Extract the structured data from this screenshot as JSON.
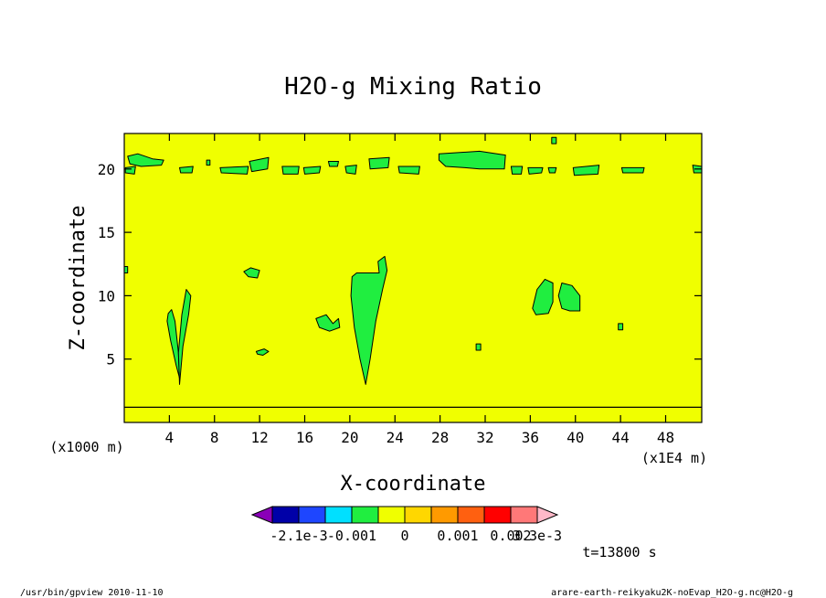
{
  "chart_data": {
    "type": "heatmap",
    "title": "H2O-g Mixing Ratio",
    "xlabel": "X-coordinate",
    "ylabel": "Z-coordinate",
    "x_unit_left": "(x1000 m)",
    "x_unit_right": "(x1E4 m)",
    "xlim": [
      0,
      51.2
    ],
    "ylim": [
      0,
      22.8
    ],
    "xticks": [
      4,
      8,
      12,
      16,
      20,
      24,
      28,
      32,
      36,
      40,
      44,
      48
    ],
    "xtick_labels": [
      "4",
      "8",
      "12",
      "16",
      "20",
      "24",
      "28",
      "32",
      "36",
      "40",
      "44",
      "48"
    ],
    "yticks": [
      5,
      10,
      15,
      20
    ],
    "ytick_labels": [
      "5",
      "10",
      "15",
      "20"
    ],
    "background_level_color": "#f0ff00",
    "anomaly_color": "#20ee40",
    "contour_line_color": "#000000",
    "horizontal_line_z": 1.2,
    "features": [
      {
        "name": "plume-a-left",
        "points": [
          [
            3.9,
            8.6
          ],
          [
            4.2,
            8.9
          ],
          [
            4.5,
            8.0
          ],
          [
            4.8,
            5.5
          ],
          [
            4.9,
            3.5
          ],
          [
            4.6,
            4.5
          ],
          [
            4.1,
            6.5
          ],
          [
            3.8,
            8.0
          ]
        ]
      },
      {
        "name": "plume-a-right",
        "points": [
          [
            5.5,
            10.5
          ],
          [
            5.9,
            10.0
          ],
          [
            5.7,
            8.5
          ],
          [
            5.2,
            6.0
          ],
          [
            4.9,
            3.0
          ],
          [
            4.8,
            5.5
          ],
          [
            5.1,
            8.5
          ]
        ]
      },
      {
        "name": "plume-b",
        "points": [
          [
            20.6,
            11.8
          ],
          [
            22.6,
            11.8
          ],
          [
            22.5,
            12.7
          ],
          [
            23.1,
            13.1
          ],
          [
            23.3,
            12.0
          ],
          [
            22.9,
            10.5
          ],
          [
            22.3,
            8.0
          ],
          [
            21.8,
            5.0
          ],
          [
            21.4,
            3.0
          ],
          [
            20.9,
            5.0
          ],
          [
            20.4,
            7.5
          ],
          [
            20.1,
            10.0
          ],
          [
            20.2,
            11.5
          ]
        ]
      },
      {
        "name": "blob-c",
        "points": [
          [
            36.2,
            9.0
          ],
          [
            36.6,
            10.5
          ],
          [
            37.3,
            11.3
          ],
          [
            38.0,
            11.0
          ],
          [
            38.0,
            9.5
          ],
          [
            37.6,
            8.6
          ],
          [
            36.5,
            8.5
          ]
        ]
      },
      {
        "name": "blob-d",
        "points": [
          [
            38.5,
            10.0
          ],
          [
            38.8,
            11.0
          ],
          [
            39.7,
            10.8
          ],
          [
            40.4,
            10.0
          ],
          [
            40.4,
            8.8
          ],
          [
            39.5,
            8.8
          ],
          [
            38.8,
            9.0
          ]
        ]
      },
      {
        "name": "blob-e",
        "points": [
          [
            17.0,
            8.2
          ],
          [
            17.9,
            8.5
          ],
          [
            18.5,
            7.8
          ],
          [
            19.0,
            8.2
          ],
          [
            19.1,
            7.5
          ],
          [
            18.2,
            7.2
          ],
          [
            17.3,
            7.5
          ]
        ]
      },
      {
        "name": "blob-f",
        "points": [
          [
            10.6,
            11.9
          ],
          [
            11.2,
            12.2
          ],
          [
            12.0,
            12.0
          ],
          [
            11.8,
            11.4
          ],
          [
            11.0,
            11.5
          ]
        ]
      },
      {
        "name": "blob-g",
        "points": [
          [
            11.7,
            5.6
          ],
          [
            12.4,
            5.8
          ],
          [
            12.8,
            5.6
          ],
          [
            12.3,
            5.3
          ],
          [
            11.8,
            5.4
          ]
        ]
      },
      {
        "name": "band-1",
        "points": [
          [
            0.3,
            21.0
          ],
          [
            1.2,
            21.2
          ],
          [
            2.5,
            20.8
          ],
          [
            3.5,
            20.7
          ],
          [
            3.3,
            20.3
          ],
          [
            1.5,
            20.2
          ],
          [
            0.5,
            20.4
          ]
        ]
      },
      {
        "name": "band-2",
        "points": [
          [
            0.1,
            20.1
          ],
          [
            1.0,
            20.2
          ],
          [
            0.9,
            19.6
          ],
          [
            0.1,
            19.7
          ]
        ]
      },
      {
        "name": "band-3",
        "points": [
          [
            4.9,
            20.1
          ],
          [
            6.1,
            20.2
          ],
          [
            6.0,
            19.7
          ],
          [
            5.0,
            19.7
          ]
        ]
      },
      {
        "name": "band-4",
        "points": [
          [
            8.5,
            20.1
          ],
          [
            11.0,
            20.2
          ],
          [
            10.9,
            19.6
          ],
          [
            8.6,
            19.7
          ]
        ]
      },
      {
        "name": "band-5",
        "points": [
          [
            11.1,
            20.6
          ],
          [
            12.8,
            20.9
          ],
          [
            12.7,
            20.0
          ],
          [
            11.3,
            19.8
          ]
        ]
      },
      {
        "name": "band-6",
        "points": [
          [
            14.0,
            20.2
          ],
          [
            15.5,
            20.2
          ],
          [
            15.4,
            19.6
          ],
          [
            14.1,
            19.6
          ]
        ]
      },
      {
        "name": "band-7",
        "points": [
          [
            15.9,
            20.1
          ],
          [
            17.4,
            20.2
          ],
          [
            17.3,
            19.7
          ],
          [
            16.0,
            19.6
          ]
        ]
      },
      {
        "name": "band-8",
        "points": [
          [
            18.1,
            20.6
          ],
          [
            19.0,
            20.6
          ],
          [
            18.9,
            20.2
          ],
          [
            18.2,
            20.2
          ]
        ]
      },
      {
        "name": "band-9",
        "points": [
          [
            19.6,
            20.2
          ],
          [
            20.6,
            20.3
          ],
          [
            20.5,
            19.6
          ],
          [
            19.7,
            19.7
          ]
        ]
      },
      {
        "name": "band-10",
        "points": [
          [
            21.7,
            20.8
          ],
          [
            23.5,
            20.9
          ],
          [
            23.4,
            20.1
          ],
          [
            21.8,
            20.0
          ]
        ]
      },
      {
        "name": "band-11",
        "points": [
          [
            24.3,
            20.2
          ],
          [
            26.2,
            20.2
          ],
          [
            26.1,
            19.6
          ],
          [
            24.4,
            19.7
          ]
        ]
      },
      {
        "name": "band-12",
        "points": [
          [
            27.9,
            21.2
          ],
          [
            31.5,
            21.4
          ],
          [
            33.8,
            21.1
          ],
          [
            33.7,
            20.0
          ],
          [
            31.5,
            20.0
          ],
          [
            30.2,
            20.1
          ],
          [
            28.5,
            20.2
          ],
          [
            27.9,
            20.7
          ]
        ]
      },
      {
        "name": "band-13",
        "points": [
          [
            34.3,
            20.2
          ],
          [
            35.3,
            20.2
          ],
          [
            35.2,
            19.6
          ],
          [
            34.4,
            19.6
          ]
        ]
      },
      {
        "name": "band-14",
        "points": [
          [
            35.8,
            20.1
          ],
          [
            37.1,
            20.1
          ],
          [
            37.0,
            19.7
          ],
          [
            35.9,
            19.6
          ]
        ]
      },
      {
        "name": "band-15",
        "points": [
          [
            37.6,
            20.1
          ],
          [
            38.3,
            20.1
          ],
          [
            38.2,
            19.7
          ],
          [
            37.7,
            19.7
          ]
        ]
      },
      {
        "name": "band-16",
        "points": [
          [
            39.8,
            20.1
          ],
          [
            42.1,
            20.3
          ],
          [
            42.0,
            19.6
          ],
          [
            39.9,
            19.5
          ]
        ]
      },
      {
        "name": "band-17",
        "points": [
          [
            44.1,
            20.1
          ],
          [
            46.1,
            20.1
          ],
          [
            46.0,
            19.7
          ],
          [
            44.2,
            19.7
          ]
        ]
      },
      {
        "name": "band-18",
        "points": [
          [
            50.4,
            20.3
          ],
          [
            51.2,
            20.2
          ],
          [
            51.2,
            19.7
          ],
          [
            50.5,
            19.7
          ]
        ]
      },
      {
        "name": "dot-1",
        "points": [
          [
            37.9,
            22.5
          ],
          [
            38.3,
            22.5
          ],
          [
            38.3,
            22.0
          ],
          [
            37.9,
            22.0
          ]
        ]
      },
      {
        "name": "dot-2",
        "points": [
          [
            31.2,
            6.2
          ],
          [
            31.6,
            6.2
          ],
          [
            31.6,
            5.7
          ],
          [
            31.2,
            5.7
          ]
        ]
      },
      {
        "name": "dot-3",
        "points": [
          [
            43.8,
            7.8
          ],
          [
            44.2,
            7.8
          ],
          [
            44.2,
            7.3
          ],
          [
            43.8,
            7.3
          ]
        ]
      },
      {
        "name": "dot-4",
        "points": [
          [
            7.3,
            20.7
          ],
          [
            7.6,
            20.7
          ],
          [
            7.6,
            20.3
          ],
          [
            7.3,
            20.3
          ]
        ]
      },
      {
        "name": "dot-5",
        "points": [
          [
            0.0,
            12.3
          ],
          [
            0.3,
            12.3
          ],
          [
            0.3,
            11.8
          ],
          [
            0.0,
            11.8
          ]
        ]
      }
    ],
    "legend": {
      "labels": [
        "-2.1e-3",
        "-0.001",
        "0",
        "0.001",
        "0.002",
        "3.3e-3"
      ],
      "left_arrow_color": "#8a00b8",
      "right_arrow_color": "#ffb8c8",
      "colors": [
        "#0000a8",
        "#1e46ff",
        "#00e0ff",
        "#20ee40",
        "#f0ff00",
        "#ffd700",
        "#ff9a00",
        "#ff6010",
        "#ff0000",
        "#ff7878"
      ]
    },
    "time_label": "t=13800 s"
  },
  "footer": {
    "left": "/usr/bin/gpview  2010-11-10",
    "right": "arare-earth-reikyaku2K-noEvap_H2O-g.nc@H2O-g"
  }
}
